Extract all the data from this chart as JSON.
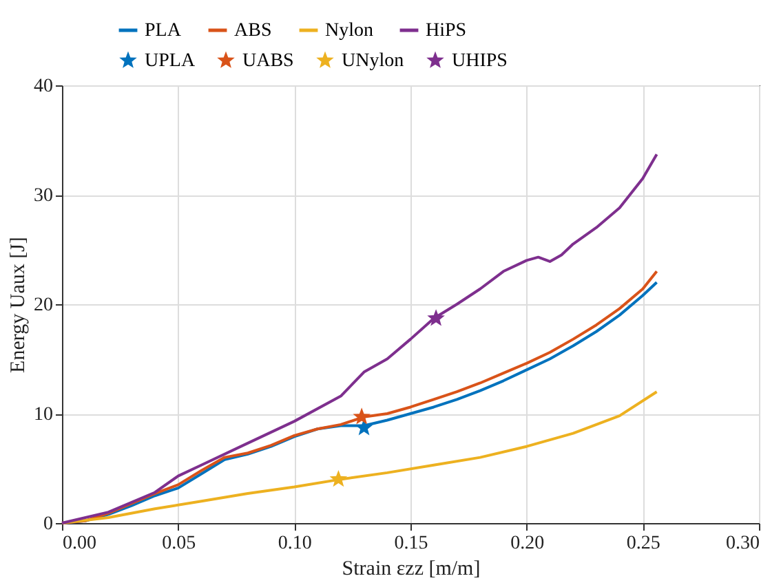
{
  "chart_data": {
    "type": "line",
    "xlabel": "Strain εzz [m/m]",
    "ylabel": "Energy Uaux [J]",
    "xlim": [
      0,
      0.3
    ],
    "ylim": [
      0,
      40
    ],
    "xticks": [
      {
        "value": 0,
        "label": "0.00"
      },
      0.05,
      {
        "value": 0.1,
        "label": "0.10"
      },
      0.15,
      {
        "value": 0.2,
        "label": "0.20"
      },
      0.25,
      {
        "value": 0.3,
        "label": "0.30"
      }
    ],
    "yticks": [
      0,
      10,
      20,
      30,
      40
    ],
    "grid": true,
    "legend": "top",
    "line_style": "solid",
    "series": [
      {
        "name": "PLA",
        "color": "#0072bd",
        "x": [
          0,
          0.01,
          0.02,
          0.03,
          0.04,
          0.05,
          0.06,
          0.07,
          0.08,
          0.09,
          0.1,
          0.11,
          0.12,
          0.13,
          0.14,
          0.15,
          0.16,
          0.17,
          0.18,
          0.19,
          0.2,
          0.21,
          0.22,
          0.23,
          0.24,
          0.25,
          0.256
        ],
        "values": [
          0,
          0.2,
          0.8,
          1.6,
          2.5,
          3.2,
          4.5,
          5.8,
          6.3,
          7.0,
          7.9,
          8.6,
          8.9,
          8.9,
          9.4,
          10.0,
          10.6,
          11.3,
          12.1,
          13.0,
          14.0,
          15.0,
          16.2,
          17.5,
          19.0,
          20.8,
          22.0
        ]
      },
      {
        "name": "ABS",
        "color": "#d95319",
        "x": [
          0,
          0.01,
          0.02,
          0.03,
          0.04,
          0.05,
          0.06,
          0.07,
          0.08,
          0.09,
          0.1,
          0.11,
          0.12,
          0.13,
          0.14,
          0.15,
          0.16,
          0.17,
          0.18,
          0.19,
          0.2,
          0.21,
          0.22,
          0.23,
          0.24,
          0.25,
          0.256
        ],
        "values": [
          0,
          0.2,
          0.9,
          1.8,
          2.7,
          3.5,
          4.8,
          6.0,
          6.4,
          7.1,
          8.0,
          8.6,
          9.0,
          9.7,
          10.0,
          10.6,
          11.3,
          12.0,
          12.8,
          13.7,
          14.6,
          15.6,
          16.8,
          18.1,
          19.6,
          21.4,
          23.0
        ]
      },
      {
        "name": "Nylon",
        "color": "#edb120",
        "x": [
          0,
          0.02,
          0.04,
          0.06,
          0.08,
          0.1,
          0.12,
          0.14,
          0.16,
          0.18,
          0.2,
          0.22,
          0.24,
          0.256
        ],
        "values": [
          0,
          0.5,
          1.3,
          2.0,
          2.7,
          3.3,
          4.0,
          4.6,
          5.3,
          6.0,
          7.0,
          8.2,
          9.8,
          12.0
        ]
      },
      {
        "name": "HiPS",
        "color": "#7e2f8e",
        "x": [
          0,
          0.02,
          0.04,
          0.05,
          0.06,
          0.08,
          0.1,
          0.12,
          0.13,
          0.14,
          0.15,
          0.16,
          0.17,
          0.18,
          0.19,
          0.2,
          0.205,
          0.21,
          0.215,
          0.22,
          0.23,
          0.24,
          0.25,
          0.256
        ],
        "values": [
          0,
          1.0,
          2.8,
          4.3,
          5.3,
          7.3,
          9.3,
          11.6,
          13.8,
          15.0,
          16.8,
          18.7,
          20.0,
          21.4,
          23.0,
          24.0,
          24.3,
          23.9,
          24.5,
          25.5,
          27.0,
          28.8,
          31.5,
          33.7
        ]
      },
      {
        "name": "UPLA",
        "color": "#0072bd",
        "type": "scatter",
        "marker": "star",
        "x": [
          0.13
        ],
        "values": [
          8.7
        ]
      },
      {
        "name": "UABS",
        "color": "#d95319",
        "type": "scatter",
        "marker": "star",
        "x": [
          0.129
        ],
        "values": [
          9.7
        ]
      },
      {
        "name": "UNylon",
        "color": "#edb120",
        "type": "scatter",
        "marker": "star",
        "x": [
          0.119
        ],
        "values": [
          4.0
        ]
      },
      {
        "name": "UHIPS",
        "color": "#7e2f8e",
        "type": "scatter",
        "marker": "star",
        "x": [
          0.161
        ],
        "values": [
          18.7
        ]
      }
    ]
  }
}
